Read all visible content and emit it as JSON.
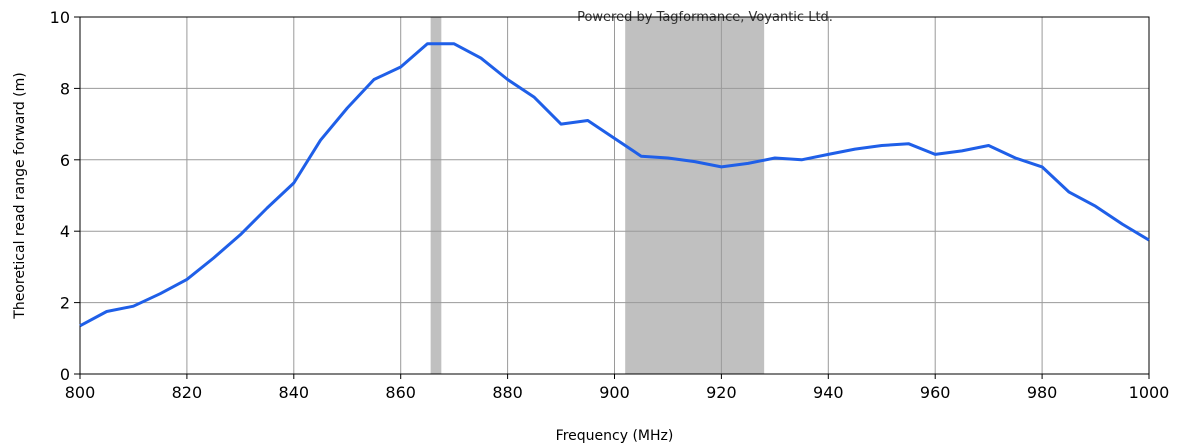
{
  "chart_data": {
    "type": "line",
    "xlabel": "Frequency (MHz)",
    "ylabel": "Theoretical read range forward (m)",
    "watermark": "Powered by Tagformance, Voyantic Ltd.",
    "xlim": [
      800,
      1000
    ],
    "ylim": [
      0,
      10
    ],
    "x_ticks": [
      800,
      820,
      840,
      860,
      880,
      900,
      920,
      940,
      960,
      980,
      1000
    ],
    "y_ticks": [
      0,
      2,
      4,
      6,
      8,
      10
    ],
    "grid": true,
    "line_color": "#1f5fe8",
    "band_color": "#c0c0c0",
    "shaded_bands": [
      {
        "x_start": 865.6,
        "x_end": 867.6
      },
      {
        "x_start": 902,
        "x_end": 928
      }
    ],
    "series": [
      {
        "x": [
          800,
          805,
          810,
          815,
          820,
          825,
          830,
          835,
          840,
          845,
          850,
          855,
          860,
          865,
          870,
          875,
          880,
          885,
          890,
          895,
          900,
          905,
          910,
          915,
          920,
          925,
          930,
          935,
          940,
          945,
          950,
          955,
          960,
          965,
          970,
          975,
          980,
          985,
          990,
          995,
          1000
        ],
        "y": [
          1.35,
          1.75,
          1.9,
          2.25,
          2.65,
          3.25,
          3.9,
          4.65,
          5.35,
          6.55,
          7.45,
          8.25,
          8.6,
          9.25,
          9.25,
          8.85,
          8.25,
          7.75,
          7.0,
          7.1,
          6.6,
          6.1,
          6.05,
          5.95,
          5.8,
          5.9,
          6.05,
          6.0,
          6.15,
          6.3,
          6.4,
          6.45,
          6.15,
          6.25,
          6.4,
          6.05,
          5.8,
          5.1,
          4.7,
          4.2,
          3.75
        ]
      }
    ]
  }
}
